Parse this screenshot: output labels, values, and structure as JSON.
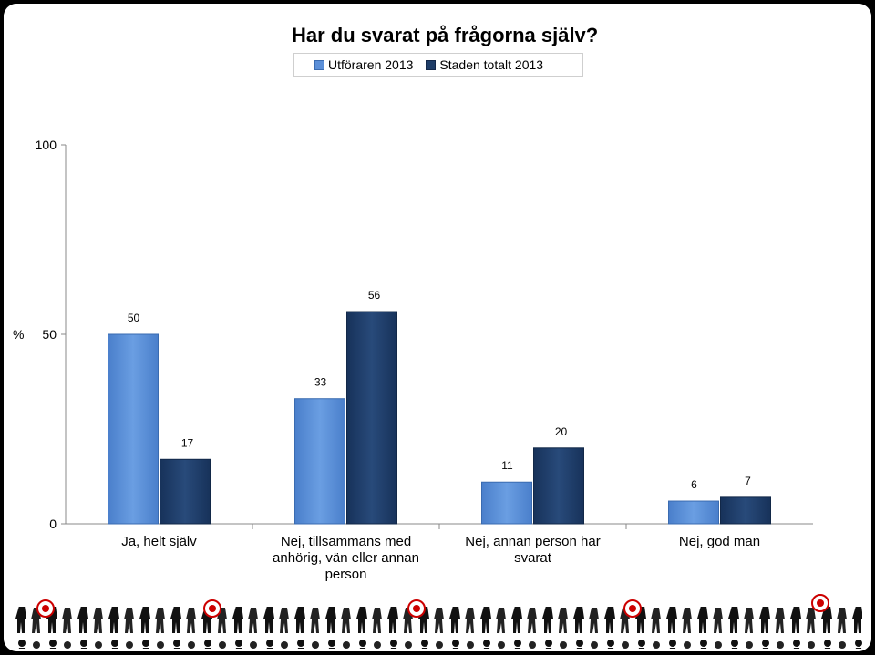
{
  "chart_data": {
    "type": "bar",
    "title": "Har du svarat på frågorna själv?",
    "ylabel": "%",
    "ylim": [
      0,
      100
    ],
    "yticks": [
      "0",
      "50",
      "100"
    ],
    "categories": [
      [
        "Ja, helt själv"
      ],
      [
        "Nej, tillsammans med",
        "anhörig, vän eller annan",
        "person"
      ],
      [
        "Nej, annan person har",
        "svarat"
      ],
      [
        "Nej, god man"
      ]
    ],
    "series": [
      {
        "name": "Utföraren 2013",
        "color": "#5b8fd8",
        "values": [
          50,
          33,
          11,
          6
        ]
      },
      {
        "name": "Staden totalt 2013",
        "color": "#1f3d68",
        "values": [
          17,
          56,
          20,
          7
        ]
      }
    ],
    "legend_position": "top",
    "grid": false
  }
}
